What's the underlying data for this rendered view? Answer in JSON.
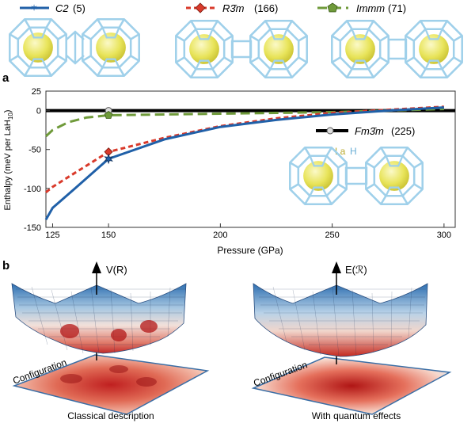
{
  "panel_a": {
    "label": "a"
  },
  "panel_b": {
    "label": "b"
  },
  "legend": {
    "c2": {
      "name": "C2",
      "num": "(5)"
    },
    "r3m": {
      "name": "R3̄m",
      "num": "(166)"
    },
    "immm": {
      "name": "Immm",
      "num": "(71)"
    },
    "fm3m": {
      "name": "Fm3̄m",
      "num": "(225)"
    }
  },
  "atoms": {
    "la": "La",
    "h": "H"
  },
  "colors": {
    "c2": "#2060a8",
    "r3m": "#d93a2b",
    "immm": "#6f9a3a",
    "fm3m": "#000000",
    "cage": "#9fd0ea",
    "atom": "#e8e45a"
  },
  "chart_data": {
    "type": "line",
    "title": "",
    "xlabel": "Pressure (GPa)",
    "ylabel_main": "Enthalpy (meV per LaH",
    "ylabel_sub": "10",
    "ylabel_end": ")",
    "xlim": [
      122,
      305
    ],
    "ylim": [
      -150,
      25
    ],
    "xticks": [
      125,
      150,
      200,
      250,
      300
    ],
    "yticks": [
      25,
      0,
      -50,
      -100,
      -150
    ],
    "legend_placement": "top",
    "series": [
      {
        "key": "fm3m",
        "name": "Fm3̄m (225)",
        "dash": "",
        "width": 4,
        "points": [
          [
            122,
            0
          ],
          [
            305,
            0
          ]
        ]
      },
      {
        "key": "immm",
        "name": "Immm (71)",
        "dash": "12 6",
        "width": 3,
        "points": [
          [
            122,
            -33
          ],
          [
            125,
            -25
          ],
          [
            132,
            -15
          ],
          [
            140,
            -9
          ],
          [
            150,
            -6
          ],
          [
            175,
            -5
          ],
          [
            200,
            -4
          ],
          [
            225,
            -3
          ],
          [
            250,
            -2
          ],
          [
            275,
            0
          ],
          [
            300,
            2
          ]
        ]
      },
      {
        "key": "r3m",
        "name": "R3̄m (166)",
        "dash": "6 4",
        "width": 3,
        "points": [
          [
            122,
            -105
          ],
          [
            125,
            -98
          ],
          [
            135,
            -80
          ],
          [
            150,
            -53
          ],
          [
            175,
            -35
          ],
          [
            200,
            -20
          ],
          [
            225,
            -10
          ],
          [
            250,
            -3
          ],
          [
            275,
            1
          ],
          [
            300,
            5
          ]
        ]
      },
      {
        "key": "c2",
        "name": "C2 (5)",
        "dash": "",
        "width": 3,
        "points": [
          [
            122,
            -140
          ],
          [
            125,
            -125
          ],
          [
            135,
            -100
          ],
          [
            150,
            -62
          ],
          [
            175,
            -37
          ],
          [
            200,
            -21
          ],
          [
            225,
            -12
          ],
          [
            250,
            -5
          ],
          [
            275,
            0
          ],
          [
            300,
            4
          ]
        ]
      }
    ],
    "markers": [
      {
        "key": "fm3m",
        "x": 150,
        "y": 0,
        "shape": "circle",
        "fill": "#dddddd"
      },
      {
        "key": "immm",
        "x": 150,
        "y": -6,
        "shape": "pentagon",
        "fill": "#6f9a3a"
      },
      {
        "key": "r3m",
        "x": 150,
        "y": -53,
        "shape": "diamond",
        "fill": "#d93a2b"
      },
      {
        "key": "c2",
        "x": 150,
        "y": -62,
        "shape": "star",
        "fill": "#2060a8"
      }
    ]
  },
  "surfaces": {
    "left": {
      "axis_label": "V(R)",
      "plane_label": "Configuration",
      "caption": "Classical description"
    },
    "right": {
      "axis_label": "E(ℛ)",
      "plane_label": "Configuration",
      "caption": "With quantum effects"
    }
  }
}
